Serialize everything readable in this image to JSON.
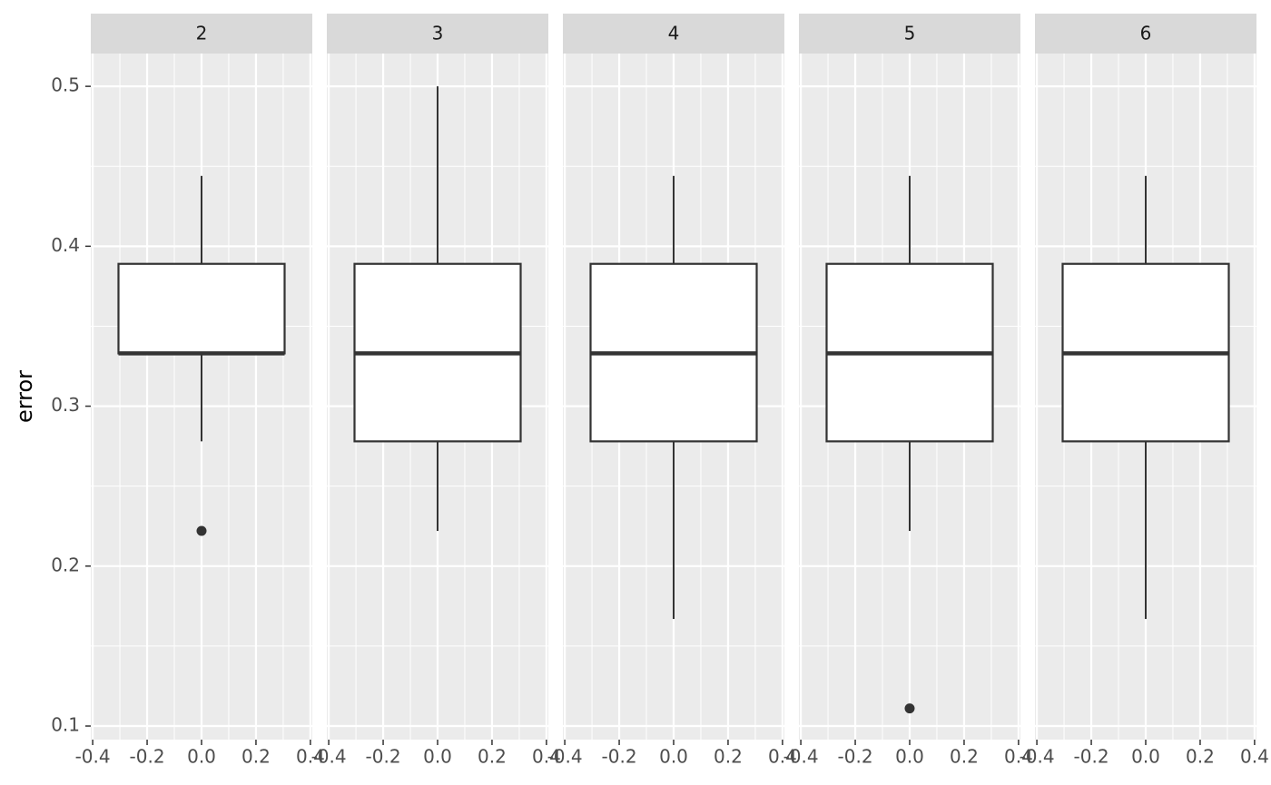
{
  "chart_data": {
    "type": "boxplot",
    "y_label": "error",
    "ylim": [
      0.0915,
      0.5205
    ],
    "yticks": [
      0.1,
      0.2,
      0.3,
      0.4,
      0.5
    ],
    "xlim": [
      -0.407,
      0.407
    ],
    "xticks": [
      -0.4,
      -0.2,
      {
        "value": 0,
        "label": "0.0"
      },
      0.2,
      0.4
    ],
    "grid": true,
    "box_color": "#333333",
    "box_fill": "#ffffff",
    "facets": [
      {
        "name": "2",
        "x": 0,
        "whislo": 0.278,
        "q1": 0.333,
        "median": 0.333,
        "q3": 0.389,
        "whishi": 0.444,
        "outliers": [
          0.222
        ]
      },
      {
        "name": "3",
        "x": 0,
        "whislo": 0.222,
        "q1": 0.278,
        "median": 0.333,
        "q3": 0.389,
        "whishi": 0.5,
        "outliers": []
      },
      {
        "name": "4",
        "x": 0,
        "whislo": 0.167,
        "q1": 0.278,
        "median": 0.333,
        "q3": 0.389,
        "whishi": 0.444,
        "outliers": []
      },
      {
        "name": "5",
        "x": 0,
        "whislo": 0.222,
        "q1": 0.278,
        "median": 0.333,
        "q3": 0.389,
        "whishi": 0.444,
        "outliers": [
          0.111
        ]
      },
      {
        "name": "6",
        "x": 0,
        "whislo": 0.167,
        "q1": 0.278,
        "median": 0.333,
        "q3": 0.389,
        "whishi": 0.444,
        "outliers": []
      }
    ]
  }
}
